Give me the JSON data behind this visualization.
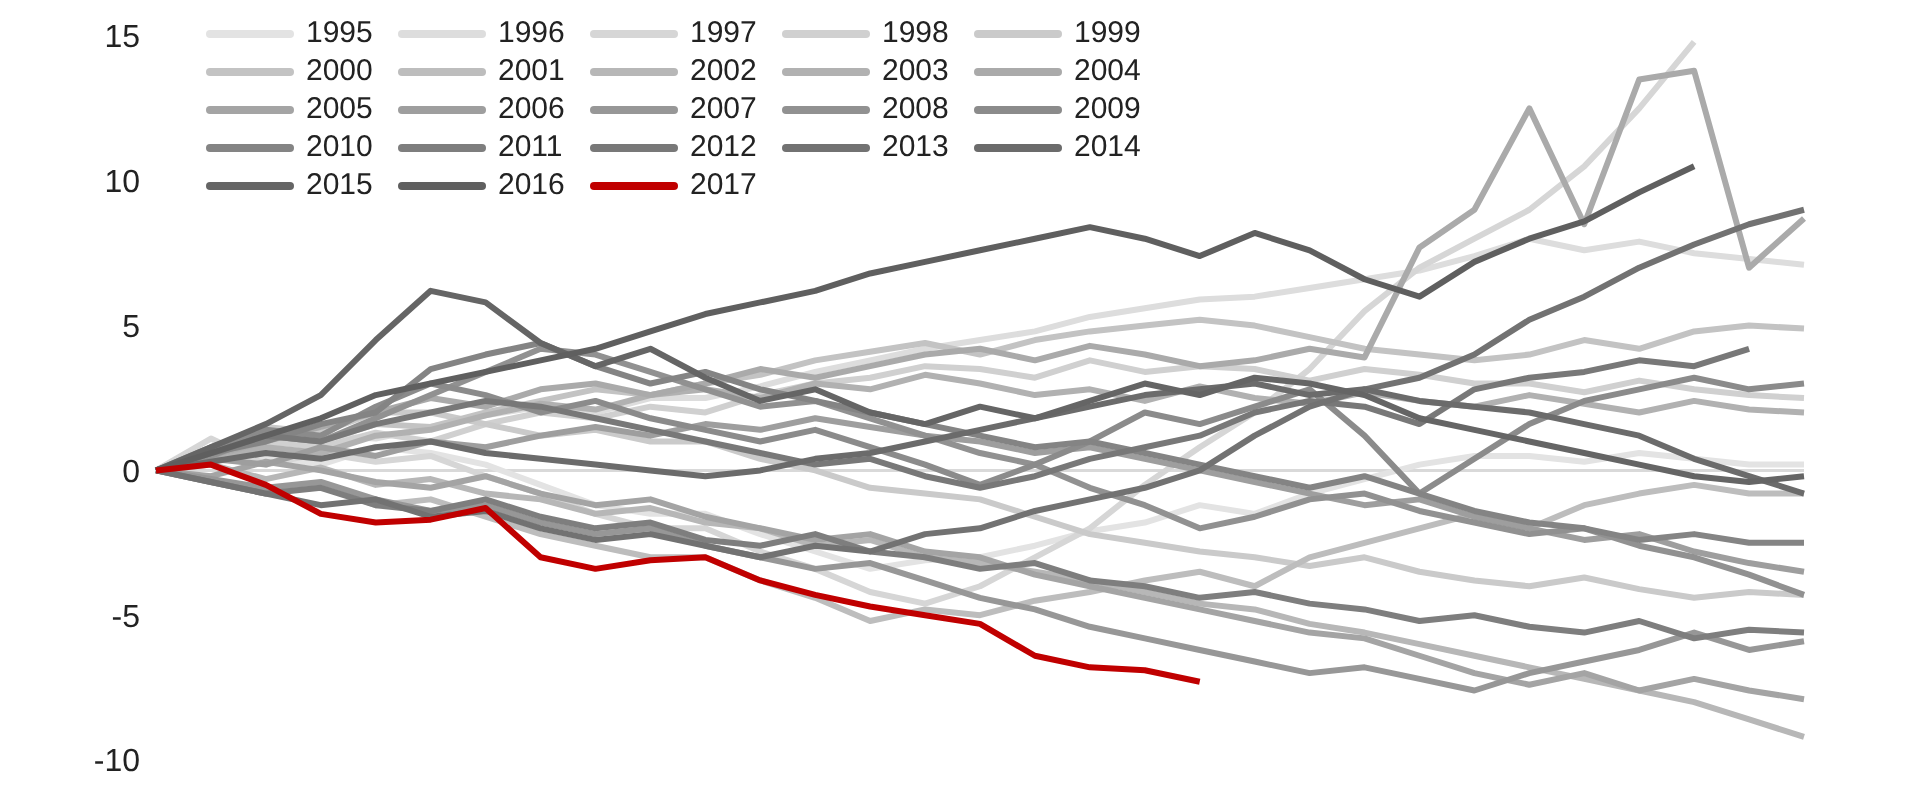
{
  "chart_data": {
    "type": "line",
    "categories": [
      null,
      null,
      null,
      null,
      null,
      null,
      null,
      null,
      null,
      null,
      null,
      null,
      null,
      null,
      null,
      null,
      null,
      null,
      null,
      null,
      null,
      null,
      null,
      null,
      null,
      null,
      null,
      null,
      null,
      null,
      null
    ],
    "ylim": [
      -10,
      15
    ],
    "yticks": [
      -10,
      -5,
      0,
      5,
      10,
      15
    ],
    "grid": false,
    "legend": "top left",
    "tick_labels": "y",
    "line_style": "solid",
    "marker": "none",
    "ref_lines": [
      {
        "axis": "y",
        "value": 0,
        "color": "#d9d9d9"
      }
    ],
    "series": [
      {
        "name": "1995",
        "color": "#e3e3e3",
        "values": [
          0,
          0.3,
          0.5,
          0.2,
          0.8,
          0.6,
          0.2,
          -0.5,
          -1.2,
          -1.5,
          -1.5,
          -2.2,
          -2.8,
          -3.4,
          -3.1,
          -3,
          -2.6,
          -2.1,
          -1.8,
          -1.2,
          -1.5,
          -0.8,
          -0.3,
          0.2,
          0.5,
          0.5,
          0.3,
          0.6,
          0.4,
          0.2,
          0.2
        ]
      },
      {
        "name": "1996",
        "color": "#dddddd",
        "values": [
          0,
          0.4,
          0.8,
          1.2,
          1.1,
          1.5,
          1.9,
          2.2,
          2.0,
          2.5,
          2.5,
          2.9,
          3.4,
          3.8,
          4.2,
          4.5,
          4.8,
          5.3,
          5.6,
          5.9,
          6.0,
          6.3,
          6.6,
          6.9,
          7.4,
          8.0,
          7.6,
          7.9,
          7.5,
          7.3,
          7.1
        ]
      },
      {
        "name": "1997",
        "color": "#d6d6d6",
        "values": [
          0,
          1.1,
          0.2,
          0.6,
          0.3,
          0.5,
          -0.2,
          -0.8,
          -1.5,
          -2.0,
          -2.0,
          -2.8,
          -3.4,
          -4.2,
          -4.6,
          -4.0,
          -3.0,
          -2.0,
          -0.5,
          0.8,
          2.0,
          3.5,
          5.5,
          7.0,
          8.0,
          9.0,
          10.5,
          12.5,
          14.8,
          null,
          null
        ]
      },
      {
        "name": "1998",
        "color": "#d0d0d0",
        "values": [
          0,
          0.6,
          1.0,
          0.8,
          1.3,
          1.0,
          1.6,
          2.0,
          1.8,
          2.2,
          2.0,
          2.6,
          3.0,
          3.2,
          3.6,
          3.5,
          3.2,
          3.8,
          3.4,
          3.6,
          3.5,
          3.1,
          3.5,
          3.3,
          3.0,
          3.0,
          2.7,
          3.1,
          2.8,
          2.6,
          2.5
        ]
      },
      {
        "name": "1999",
        "color": "#cacaca",
        "values": [
          0,
          0.8,
          1.5,
          1.3,
          2.0,
          2.0,
          1.6,
          1.2,
          1.4,
          1.0,
          1.0,
          0.4,
          0.0,
          -0.6,
          -0.8,
          -1.0,
          -1.6,
          -2.2,
          -2.5,
          -2.8,
          -3.0,
          -3.3,
          -3.0,
          -3.5,
          -3.8,
          -4.0,
          -3.7,
          -4.1,
          -4.4,
          -4.2,
          -4.3
        ]
      },
      {
        "name": "2000",
        "color": "#c3c3c3",
        "values": [
          0,
          0.6,
          1.2,
          1.0,
          1.6,
          1.5,
          2.0,
          2.4,
          2.8,
          2.6,
          3.0,
          3.3,
          3.8,
          4.1,
          4.4,
          4.0,
          4.5,
          4.8,
          5.0,
          5.2,
          5.0,
          4.6,
          4.2,
          4.0,
          3.8,
          4.0,
          4.5,
          4.2,
          4.8,
          5.0,
          4.9
        ]
      },
      {
        "name": "2001",
        "color": "#bdbdbd",
        "values": [
          0,
          -0.4,
          -0.8,
          -0.5,
          -1.2,
          -1.0,
          -1.6,
          -2.2,
          -2.6,
          -3.0,
          -3.0,
          -3.8,
          -4.4,
          -5.2,
          -4.8,
          -5.0,
          -4.5,
          -4.2,
          -3.8,
          -3.5,
          -4.0,
          -3.0,
          -2.5,
          -2.0,
          -1.5,
          -2.0,
          -1.2,
          -0.8,
          -0.5,
          -0.8,
          -0.8
        ]
      },
      {
        "name": "2002",
        "color": "#b7b7b7",
        "values": [
          0,
          0.2,
          -0.3,
          0.1,
          -0.5,
          -0.3,
          -0.8,
          -1.0,
          -1.5,
          -1.3,
          -1.8,
          -2.0,
          -2.6,
          -2.4,
          -3.0,
          -3.2,
          -3.5,
          -3.8,
          -4.2,
          -4.6,
          -4.8,
          -5.3,
          -5.6,
          -6.0,
          -6.4,
          -6.8,
          -7.2,
          -7.6,
          -8.0,
          -8.6,
          -9.2
        ]
      },
      {
        "name": "2003",
        "color": "#b1b1b1",
        "values": [
          0,
          0.3,
          0.8,
          0.6,
          1.2,
          1.4,
          1.9,
          2.3,
          2.1,
          2.6,
          2.8,
          2.5,
          3.0,
          2.8,
          3.3,
          3.0,
          2.6,
          2.8,
          2.4,
          2.9,
          2.5,
          2.3,
          2.7,
          2.4,
          2.2,
          2.6,
          2.3,
          2.0,
          2.4,
          2.1,
          2.0
        ]
      },
      {
        "name": "2004",
        "color": "#aaaaaa",
        "values": [
          0,
          0.5,
          1.0,
          1.5,
          2.0,
          2.5,
          2.2,
          2.8,
          3.0,
          2.6,
          3.0,
          3.5,
          3.2,
          3.6,
          4.0,
          4.2,
          3.8,
          4.3,
          4.0,
          3.6,
          3.8,
          4.2,
          3.9,
          7.7,
          9.0,
          12.5,
          8.5,
          13.5,
          13.8,
          7.0,
          8.7
        ]
      },
      {
        "name": "2005",
        "color": "#a4a4a4",
        "values": [
          0,
          -0.2,
          0.3,
          0.0,
          -0.4,
          -0.6,
          -0.2,
          -0.8,
          -1.2,
          -1.0,
          -1.6,
          -2.0,
          -2.4,
          -2.2,
          -2.8,
          -3.0,
          -3.6,
          -4.0,
          -4.4,
          -4.8,
          -5.2,
          -5.6,
          -5.8,
          -6.4,
          -7.0,
          -7.4,
          -7.0,
          -7.6,
          -7.2,
          -7.6,
          -7.9
        ]
      },
      {
        "name": "2006",
        "color": "#9e9e9e",
        "values": [
          0,
          0.4,
          0.2,
          0.8,
          0.5,
          1.0,
          0.8,
          1.2,
          1.5,
          1.2,
          1.6,
          1.4,
          1.8,
          1.5,
          1.2,
          1.0,
          0.6,
          0.8,
          0.4,
          0.0,
          -0.4,
          -0.8,
          -1.2,
          -1.0,
          -1.6,
          -2.0,
          -2.4,
          -2.2,
          -2.8,
          -3.2,
          -3.5
        ]
      },
      {
        "name": "2007",
        "color": "#979797",
        "values": [
          0,
          -0.3,
          -0.6,
          -0.4,
          -1.0,
          -1.4,
          -1.2,
          -1.8,
          -2.2,
          -2.0,
          -2.6,
          -3.0,
          -3.4,
          -3.2,
          -3.8,
          -4.4,
          -4.8,
          -5.4,
          -5.8,
          -6.2,
          -6.6,
          -7.0,
          -6.8,
          -7.2,
          -7.6,
          -7.0,
          -6.6,
          -6.2,
          -5.6,
          -6.2,
          -5.9
        ]
      },
      {
        "name": "2008",
        "color": "#919191",
        "values": [
          0,
          0.5,
          1.2,
          1.0,
          1.8,
          2.6,
          3.4,
          4.2,
          4.0,
          3.4,
          2.8,
          2.2,
          2.4,
          1.8,
          1.2,
          0.6,
          0.2,
          -0.6,
          -1.2,
          -2.0,
          -1.6,
          -1.0,
          -0.8,
          -1.4,
          -1.8,
          -2.2,
          -2.0,
          -2.6,
          -3.0,
          -3.6,
          -4.3
        ]
      },
      {
        "name": "2009",
        "color": "#8b8b8b",
        "values": [
          0,
          0.8,
          1.4,
          1.2,
          2.2,
          3.0,
          2.6,
          2.0,
          2.4,
          1.8,
          1.4,
          1.0,
          1.4,
          0.8,
          0.2,
          -0.5,
          0.2,
          1.0,
          2.0,
          1.6,
          2.2,
          2.8,
          1.2,
          -0.8,
          0.4,
          1.6,
          2.4,
          2.8,
          3.2,
          2.8,
          3.0
        ]
      },
      {
        "name": "2010",
        "color": "#848484",
        "values": [
          0,
          0.6,
          1.0,
          1.6,
          2.0,
          3.5,
          4.0,
          4.4,
          3.6,
          3.0,
          3.4,
          2.8,
          2.4,
          2.0,
          1.6,
          1.2,
          0.8,
          1.0,
          0.6,
          0.2,
          -0.2,
          -0.6,
          -0.2,
          -0.8,
          -1.4,
          -1.8,
          -2.0,
          -2.4,
          -2.2,
          -2.5,
          -2.5
        ]
      },
      {
        "name": "2011",
        "color": "#7e7e7e",
        "values": [
          0,
          -0.4,
          -0.8,
          -0.6,
          -1.2,
          -1.4,
          -1.0,
          -1.6,
          -2.0,
          -1.8,
          -2.4,
          -2.6,
          -2.2,
          -2.8,
          -3.0,
          -3.4,
          -3.2,
          -3.8,
          -4.0,
          -4.4,
          -4.2,
          -4.6,
          -4.8,
          -5.2,
          -5.0,
          -5.4,
          -5.6,
          -5.2,
          -5.8,
          -5.5,
          -5.6
        ]
      },
      {
        "name": "2012",
        "color": "#787878",
        "values": [
          0,
          0.6,
          1.2,
          1.0,
          1.6,
          2.0,
          2.4,
          2.2,
          1.8,
          1.4,
          1.0,
          0.6,
          0.2,
          0.4,
          -0.2,
          -0.6,
          -0.2,
          0.4,
          0.8,
          1.2,
          2.0,
          2.4,
          2.2,
          1.6,
          2.8,
          3.2,
          3.4,
          3.8,
          3.6,
          4.2,
          null
        ]
      },
      {
        "name": "2013",
        "color": "#727272",
        "values": [
          0,
          -0.4,
          -0.8,
          -1.2,
          -1.0,
          -1.6,
          -1.4,
          -2.0,
          -2.4,
          -2.2,
          -2.6,
          -3.0,
          -2.6,
          -2.8,
          -2.2,
          -2.0,
          -1.4,
          -1.0,
          -0.6,
          0.0,
          1.2,
          2.2,
          2.8,
          3.2,
          4.0,
          5.2,
          6.0,
          7.0,
          7.8,
          8.5,
          9.0
        ]
      },
      {
        "name": "2014",
        "color": "#6b6b6b",
        "values": [
          0,
          0.3,
          0.6,
          0.4,
          0.8,
          1.0,
          0.6,
          0.4,
          0.2,
          0.0,
          -0.2,
          0.0,
          0.4,
          0.6,
          1.0,
          1.4,
          1.8,
          2.2,
          2.6,
          2.8,
          3.0,
          2.6,
          2.8,
          2.4,
          2.2,
          2.0,
          1.6,
          1.2,
          0.4,
          -0.2,
          -0.8
        ]
      },
      {
        "name": "2015",
        "color": "#656565",
        "values": [
          0,
          0.8,
          1.6,
          2.6,
          4.5,
          6.2,
          5.8,
          4.4,
          3.6,
          4.2,
          3.2,
          2.4,
          2.8,
          2.0,
          1.6,
          2.2,
          1.8,
          2.4,
          3.0,
          2.6,
          3.2,
          3.0,
          2.6,
          1.8,
          1.4,
          1.0,
          0.6,
          0.2,
          -0.2,
          -0.4,
          -0.2
        ]
      },
      {
        "name": "2016",
        "color": "#5f5f5f",
        "values": [
          0,
          0.6,
          1.2,
          1.8,
          2.6,
          3.0,
          3.4,
          3.8,
          4.2,
          4.8,
          5.4,
          5.8,
          6.2,
          6.8,
          7.2,
          7.6,
          8.0,
          8.4,
          8.0,
          7.4,
          8.2,
          7.6,
          6.6,
          6.0,
          7.2,
          8.0,
          8.6,
          9.6,
          10.5,
          null,
          null
        ]
      },
      {
        "name": "2017",
        "color": "#c00000",
        "values": [
          0,
          0.2,
          -0.5,
          -1.5,
          -1.8,
          -1.7,
          -1.3,
          -3.0,
          -3.4,
          -3.1,
          -3.0,
          -3.8,
          -4.3,
          -4.7,
          -5.0,
          -5.3,
          -6.4,
          -6.8,
          -6.9,
          -7.3,
          null,
          null,
          null,
          null,
          null,
          null,
          null,
          null,
          null,
          null,
          null
        ]
      }
    ]
  }
}
